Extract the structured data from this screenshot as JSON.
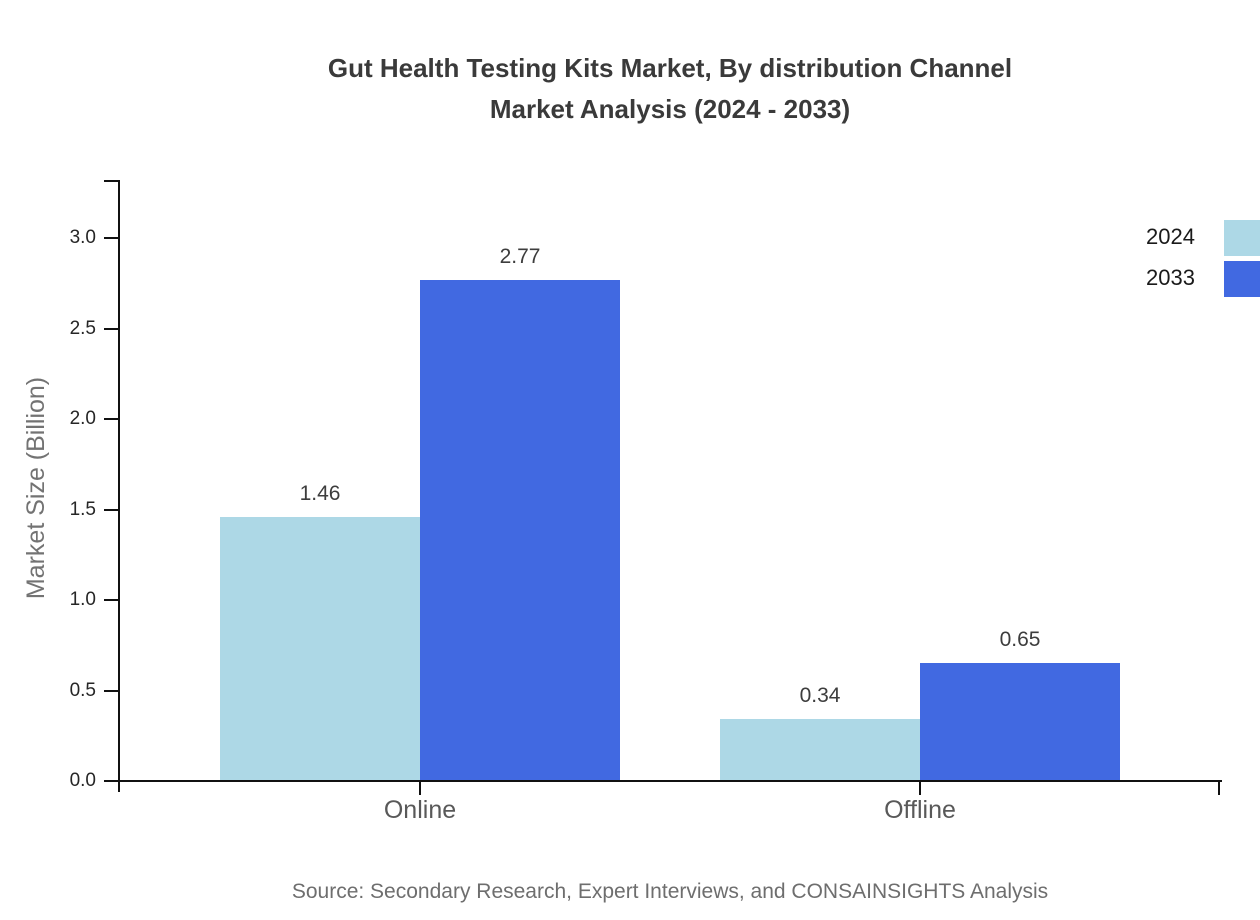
{
  "title": {
    "line1": "Gut Health Testing Kits Market, By distribution Channel",
    "line2": "Market Analysis (2024 - 2033)"
  },
  "source": "Source: Secondary Research, Expert Interviews, and CONSAINSIGHTS Analysis",
  "chart_data": {
    "type": "bar",
    "title": "Gut Health Testing Kits Market, By distribution Channel Market Analysis (2024 - 2033)",
    "categories": [
      "Online",
      "Offline"
    ],
    "series": [
      {
        "name": "2024",
        "values": [
          1.46,
          0.34
        ],
        "color": "#ADD8E6"
      },
      {
        "name": "2033",
        "values": [
          2.77,
          0.65
        ],
        "color": "#4169E1"
      }
    ],
    "xlabel": "",
    "ylabel": "Market Size (Billion)",
    "ylim": [
      0,
      3.3
    ],
    "yticks": [
      0.0,
      0.5,
      1.0,
      1.5,
      2.0,
      2.5,
      3.0
    ],
    "grid": false,
    "legend_position": "upper-right-outside",
    "value_labels": true
  },
  "colors": {
    "series_2024": "#ADD8E6",
    "series_2033": "#4169E1",
    "axis": "#111111",
    "title_text": "#3a3a3a",
    "tick_label_text": "#262626",
    "category_text": "#595959",
    "y_axis_title_text": "#737373",
    "source_text": "#6e6e6e"
  }
}
